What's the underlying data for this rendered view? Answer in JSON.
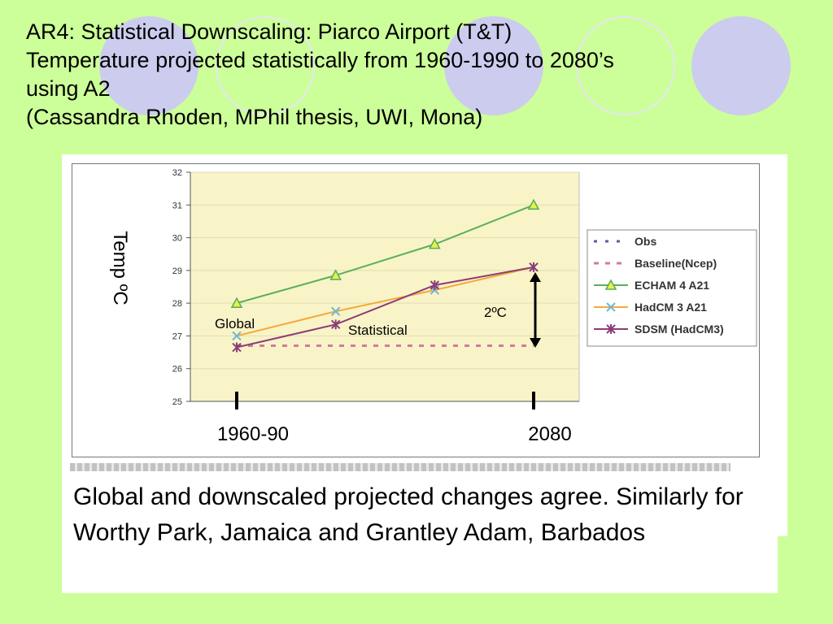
{
  "slide": {
    "title_lines": [
      "AR4: Statistical Downscaling: Piarco Airport (T&T)",
      "Temperature projected statistically from 1960-1990 to 2080’s",
      "using A2",
      "(Cassandra Rhoden, MPhil thesis, UWI, Mona)"
    ],
    "callout_text": "Global and downscaled projected changes agree. Similarly for Worthy Park, Jamaica and Grantley Adam, Barbados"
  },
  "colors": {
    "background": "#ccff99",
    "plot_background": "#f8f4c8",
    "obs": "#5a5aaa",
    "baseline": "#d27aa0",
    "echam": "#5caf5c",
    "hadcm": "#f5a93a",
    "sdsm": "#8c3c78",
    "hadcm_marker": "#6ab8d8"
  },
  "chart_data": {
    "type": "line",
    "ylabel": "Temp ºC",
    "ylim": [
      25,
      32
    ],
    "yticks": [
      25,
      26,
      27,
      28,
      29,
      30,
      31,
      32
    ],
    "grid": "horizontal",
    "legend_position": "right",
    "x": [
      1,
      2,
      3,
      4
    ],
    "x_markers": [
      {
        "x": 1,
        "label": "1960-90"
      },
      {
        "x": 4,
        "label": "2080"
      }
    ],
    "series": [
      {
        "name": "Obs",
        "style": "dash-dot",
        "color_key": "obs",
        "marker": "none",
        "values": [
          26.7,
          26.7,
          26.7,
          26.7
        ]
      },
      {
        "name": "Baseline(Ncep)",
        "style": "dash",
        "color_key": "baseline",
        "marker": "none",
        "values": [
          26.7,
          26.7,
          26.7,
          26.7
        ]
      },
      {
        "name": "ECHAM 4 A21",
        "style": "solid",
        "color_key": "echam",
        "marker": "triangle",
        "values": [
          28.0,
          28.85,
          29.8,
          31.0
        ]
      },
      {
        "name": "HadCM 3 A21",
        "style": "solid",
        "color_key": "hadcm",
        "marker": "x",
        "values": [
          27.0,
          27.75,
          28.4,
          29.1
        ]
      },
      {
        "name": "SDSM (HadCM3)",
        "style": "solid",
        "color_key": "sdsm",
        "marker": "star",
        "values": [
          26.65,
          27.35,
          28.55,
          29.1
        ]
      }
    ],
    "annotations": [
      {
        "text": "Global"
      },
      {
        "text": "Statistical"
      },
      {
        "text": "2ºC"
      }
    ]
  }
}
